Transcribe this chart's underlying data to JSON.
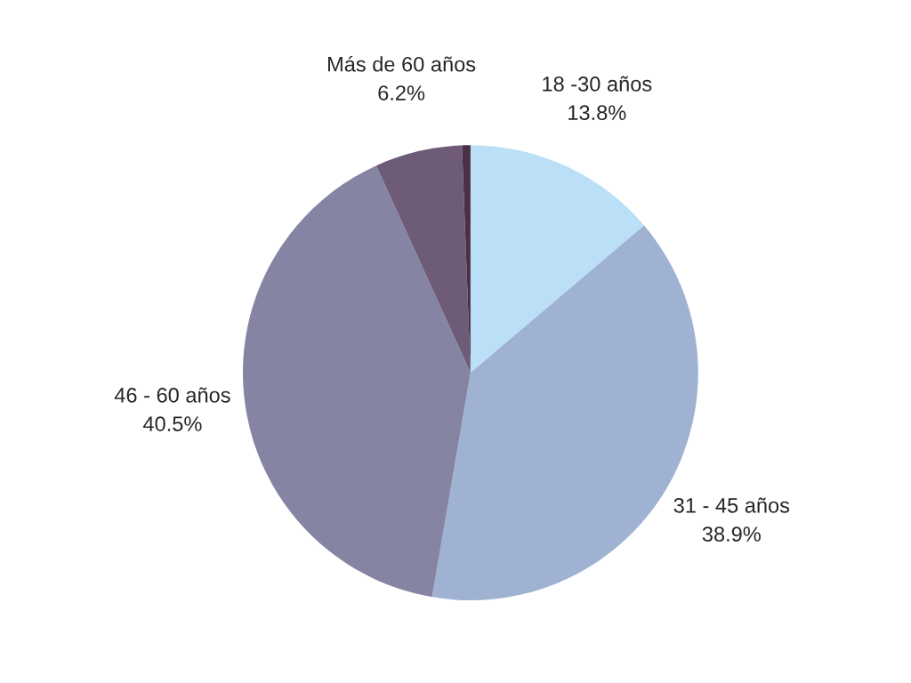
{
  "chart_data": {
    "type": "pie",
    "categories": [
      "18 -30 años",
      "31 - 45 años",
      "46 - 60 años",
      "Más de 60 años",
      null
    ],
    "values": [
      13.8,
      38.9,
      40.5,
      6.2,
      0.6
    ],
    "value_labels": [
      "13.8%",
      "38.9%",
      "40.5%",
      "6.2%",
      null
    ],
    "colors": [
      "#bbdff7",
      "#a0b2d2",
      "#8585a3",
      "#6d5b77",
      "#4a2f45"
    ]
  }
}
